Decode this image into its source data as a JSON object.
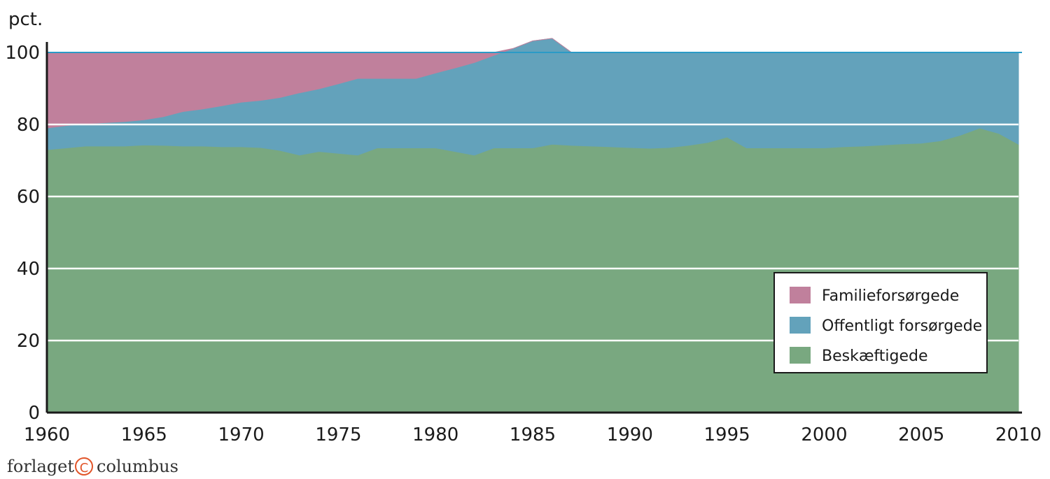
{
  "footer": {
    "publisher_left": "forlaget",
    "publisher_symbol": "©",
    "publisher_right": "columbus"
  },
  "chart_data": {
    "type": "area",
    "stacked": true,
    "ylabel": "pct.",
    "xlim": [
      1960,
      2010
    ],
    "ylim": [
      0,
      100
    ],
    "x_ticks": [
      "1960",
      "1965",
      "1970",
      "1975",
      "1980",
      "1985",
      "1990",
      "1995",
      "2000",
      "2005",
      "2010"
    ],
    "y_ticks": [
      "0",
      "20",
      "40",
      "60",
      "80",
      "100"
    ],
    "grid": "horizontal",
    "legend_position": "bottom-right",
    "x": [
      1960,
      1961,
      1962,
      1963,
      1964,
      1965,
      1966,
      1967,
      1968,
      1969,
      1970,
      1971,
      1972,
      1973,
      1974,
      1975,
      1976,
      1977,
      1978,
      1979,
      1980,
      1981,
      1982,
      1983,
      1984,
      1985,
      1986,
      1987,
      1988,
      1989,
      1990,
      1991,
      1992,
      1993,
      1994,
      1995,
      1996,
      1997,
      1998,
      1999,
      2000,
      2001,
      2002,
      2003,
      2004,
      2005,
      2006,
      2007,
      2008,
      2009,
      2010
    ],
    "series": [
      {
        "name": "Beskæftigede",
        "color": "#79a880",
        "values": [
          73,
          73.5,
          74,
          74,
          74,
          74.3,
          74.2,
          74,
          74,
          73.8,
          73.8,
          73.6,
          72.8,
          71.5,
          72.5,
          72,
          71.5,
          73.5,
          73.5,
          73.5,
          73.5,
          72.5,
          71.5,
          73.5,
          73.5,
          73.5,
          74.5,
          74.2,
          74,
          73.8,
          73.6,
          73.4,
          73.6,
          74.2,
          75,
          76.5,
          73.5,
          73.5,
          73.5,
          73.5,
          73.5,
          73.8,
          74,
          74.3,
          74.6,
          74.8,
          75.5,
          77,
          79,
          77.5,
          74.5
        ]
      },
      {
        "name": "Offentligt forsørgede",
        "color": "#63a2bb",
        "values": [
          6,
          6.2,
          6.2,
          6.5,
          6.8,
          7,
          8,
          9.6,
          10.3,
          11.4,
          12.4,
          13.1,
          14.7,
          17.3,
          17.4,
          19.3,
          21.3,
          19.3,
          19.3,
          19.3,
          20.8,
          23.2,
          25.7,
          25.7,
          27.6,
          29.7,
          29.4,
          25.8,
          26,
          26.2,
          26.4,
          26.6,
          26.4,
          25.8,
          25,
          23.5,
          26.5,
          26.5,
          26.5,
          26.5,
          26.5,
          26.2,
          26,
          25.7,
          25.4,
          25.2,
          24.5,
          23,
          21,
          22.5,
          25.5
        ]
      },
      {
        "name": "Familieforsørgede",
        "color": "#c0809c",
        "values": [
          21,
          20.3,
          19.8,
          19.5,
          19.2,
          18.7,
          17.8,
          16.4,
          15.7,
          14.8,
          13.8,
          13.3,
          12.5,
          11.2,
          10.1,
          8.7,
          7.2,
          7.2,
          7.2,
          7.2,
          5.7,
          4.3,
          2.8,
          0.8,
          0,
          0,
          0,
          0,
          0,
          0,
          0,
          0,
          0,
          0,
          0,
          0,
          0,
          0,
          0,
          0,
          0,
          0,
          0,
          0,
          0,
          0,
          0,
          0,
          0,
          0,
          0
        ]
      }
    ]
  }
}
